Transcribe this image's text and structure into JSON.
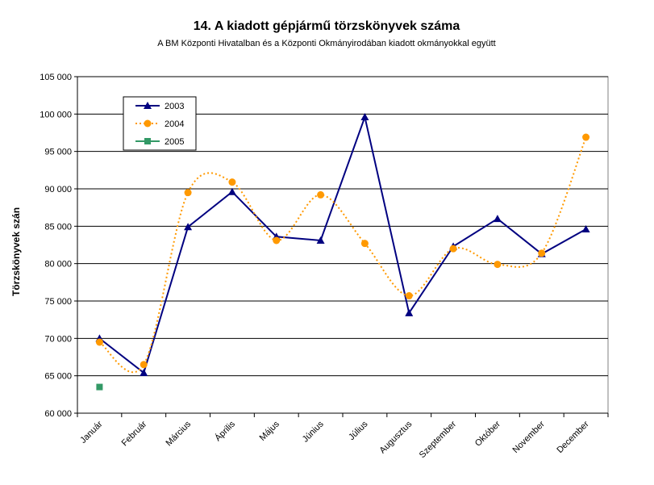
{
  "chart_data": {
    "type": "line",
    "title": "14. A  kiadott gépjármű  törzskönyvek száma",
    "subtitle": "A BM Központi Hivatalban és a Központi Okmányirodában kiadott okmányokkal együtt",
    "ylabel": "Törzskönyvek szán",
    "xlabel": "",
    "categories": [
      "Január",
      "Február",
      "Március",
      "Április",
      "Május",
      "Június",
      "Július",
      "Augusztus",
      "Szeptember",
      "Október",
      "November",
      "December"
    ],
    "ylim": [
      60000,
      105000
    ],
    "yticks": [
      60000,
      65000,
      70000,
      75000,
      80000,
      85000,
      90000,
      95000,
      100000,
      105000
    ],
    "ytick_labels": [
      "60 000",
      "65 000",
      "70 000",
      "75 000",
      "80 000",
      "85 000",
      "90 000",
      "95 000",
      "100 000",
      "105 000"
    ],
    "grid": "horizontal",
    "legend_position": "top-left",
    "series": [
      {
        "name": "2003",
        "color": "#000080",
        "style": "solid",
        "marker": "triangle",
        "values": [
          70000,
          65400,
          84900,
          89600,
          83600,
          83100,
          99600,
          73400,
          82300,
          86000,
          81300,
          84600
        ]
      },
      {
        "name": "2004",
        "color": "#FF9900",
        "style": "dotted",
        "marker": "circle",
        "values": [
          69500,
          66500,
          89500,
          90900,
          83100,
          89200,
          82700,
          75700,
          82000,
          79900,
          81400,
          96900
        ]
      },
      {
        "name": "2005",
        "color": "#339966",
        "style": "solid",
        "marker": "square",
        "values": [
          63500,
          null,
          null,
          null,
          null,
          null,
          null,
          null,
          null,
          null,
          null,
          null
        ]
      }
    ]
  }
}
